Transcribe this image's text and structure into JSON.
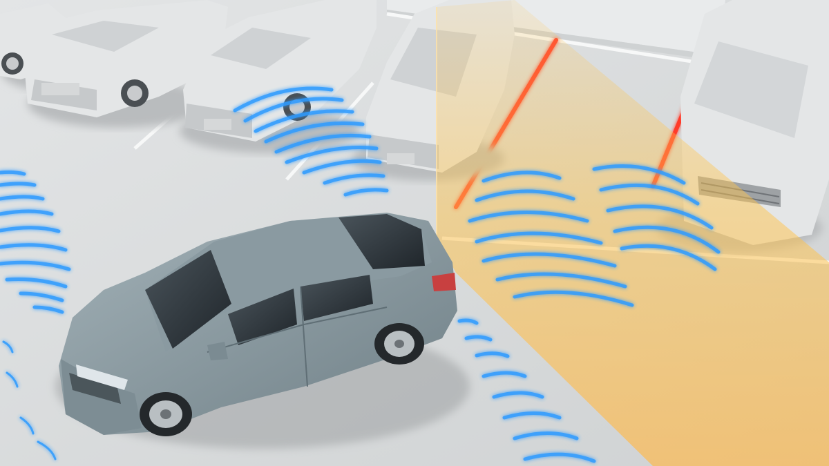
{
  "scene": {
    "subject": "car",
    "colors": {
      "ground": "#d9dcdd",
      "parked_car": "#e4e6e7",
      "parked_car_shade": "#c6c9cb",
      "subject_car": "#8e9ea4",
      "subject_car_shade": "#6f7f86",
      "glass": "#2c3338",
      "sensor_wave": "#2e9bff",
      "sensor_glow": "#8fd0ff",
      "detection_zone": "#ffc44d",
      "warning_line": "#ff3a2a",
      "wall": "#e8eaeb"
    },
    "icons": [
      "sensor-wave-icon",
      "detection-zone-icon",
      "warning-line-icon"
    ],
    "parked_car_count": 6
  }
}
